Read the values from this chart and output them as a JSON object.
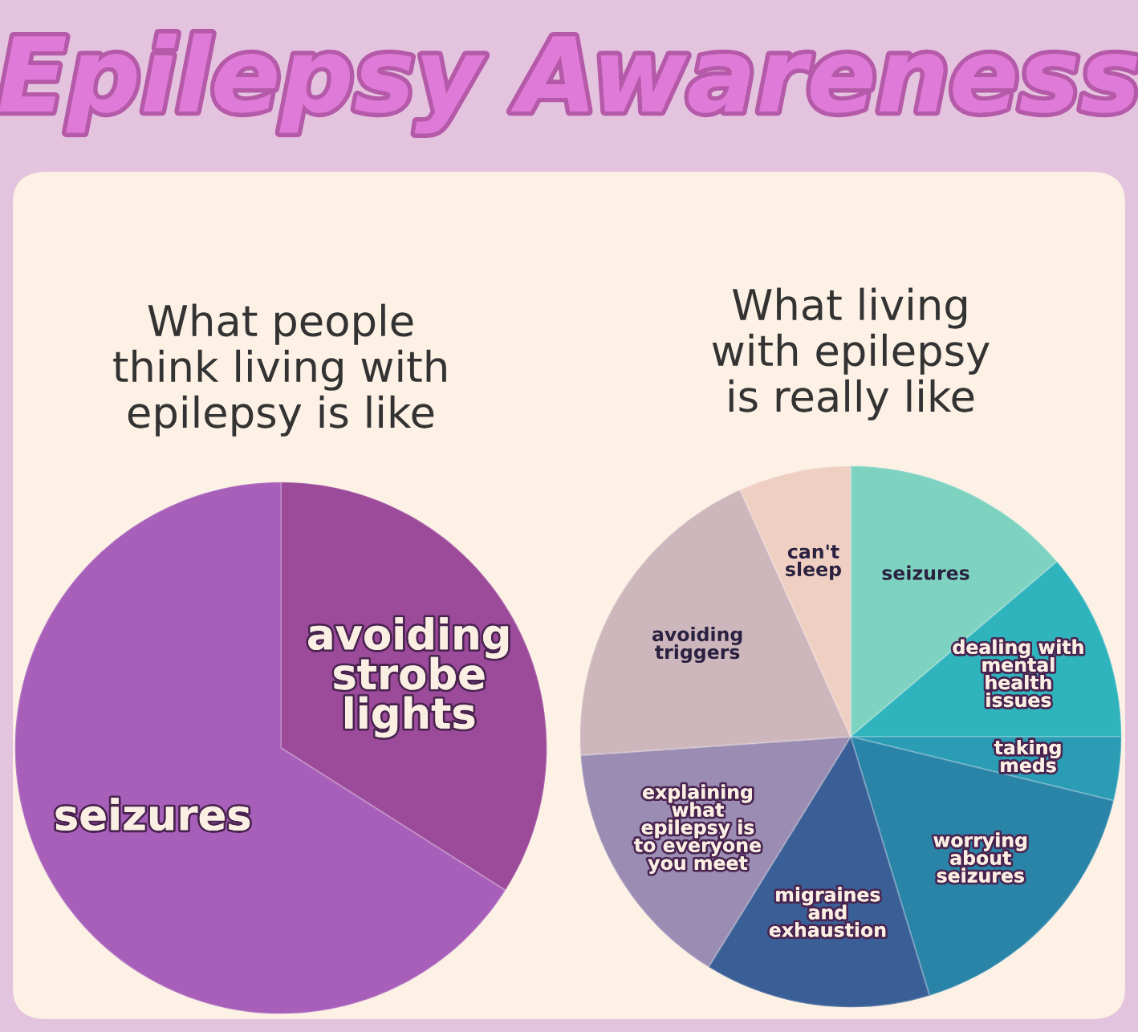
{
  "chart_data": [
    {
      "type": "pie",
      "title": "What people\nthink living with\nepilepsy is like",
      "annotations": [
        "Epilepsy Awareness"
      ],
      "categories": [
        "avoiding\nstrobe\nlights",
        "seizures"
      ],
      "values": [
        34,
        66
      ],
      "colors": [
        "#9c4a9a",
        "#a75fb9"
      ]
    },
    {
      "type": "pie",
      "title": "What living\nwith epilepsy\nis really like",
      "categories": [
        "seizures",
        "dealing with\nmental\nhealth\nissues",
        "taking\nmeds",
        "worrying\nabout\nseizures",
        "migraines\nand\nexhaustion",
        "explaining\nwhat\nepilepsy is\nto everyone\nyou meet",
        "avoiding\ntriggers",
        "can't\nsleep"
      ],
      "values": [
        13.8,
        11.2,
        3.8,
        16.5,
        13.5,
        15.1,
        19.4,
        6.7
      ],
      "colors": [
        "#7ed3c0",
        "#2fb3bd",
        "#2a9db5",
        "#2a84a8",
        "#3a5f96",
        "#9a8cb3",
        "#cdb7bd",
        "#f0cfc3"
      ]
    }
  ]
}
